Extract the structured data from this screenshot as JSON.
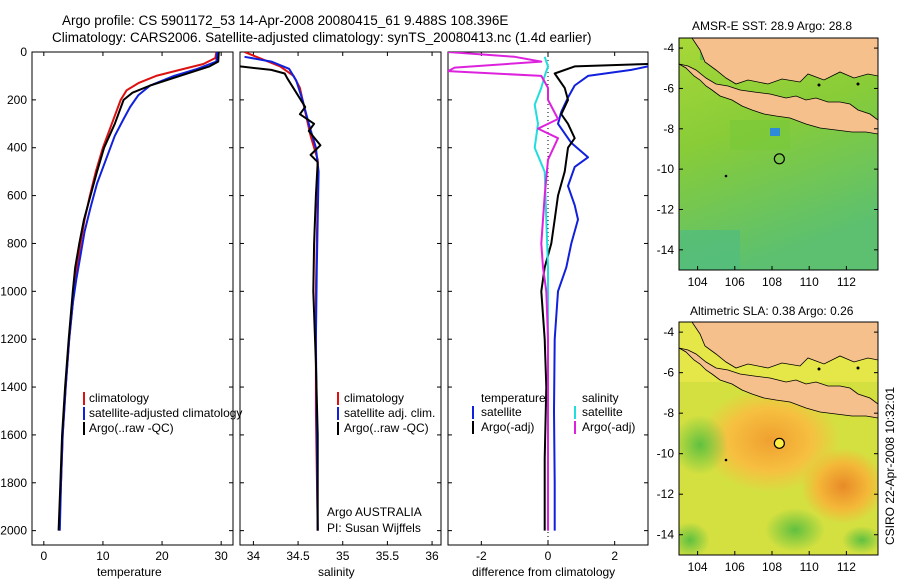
{
  "header": {
    "title_line1": "Argo profile: CS 5901172_53 14-Apr-2008 20080415_61 9.488S 108.396E",
    "title_line2": "Climatology: CARS2006. Satellite-adjusted climatology: synTS_20080413.nc (1.4d earlier)"
  },
  "side_stamp": "CSIRO 22-Apr-2008 10:32:01",
  "colors": {
    "climatology": "#dd1111",
    "satellite": "#1020dd",
    "argo": "#000000",
    "sal_satellite": "#22dddd",
    "sal_argo": "#dd22dd",
    "land": "#f5c08c"
  },
  "chart_data": [
    {
      "id": "temperature",
      "type": "line",
      "xlabel": "temperature",
      "xlim": [
        -2,
        32
      ],
      "xticks": [
        0,
        10,
        20,
        30
      ],
      "ylim": [
        2060,
        0
      ],
      "yticks": [
        0,
        200,
        400,
        600,
        800,
        1000,
        1200,
        1400,
        1600,
        1800,
        2000
      ],
      "legend": [
        "climatology",
        "satellite-adjusted climatology",
        "Argo(..raw -QC)"
      ],
      "series": [
        {
          "name": "climatology",
          "color": "#dd1111",
          "points": [
            [
              29.2,
              0
            ],
            [
              29,
              25
            ],
            [
              27,
              50
            ],
            [
              23,
              75
            ],
            [
              19,
              100
            ],
            [
              16,
              130
            ],
            [
              14,
              160
            ],
            [
              13,
              200
            ],
            [
              11.5,
              300
            ],
            [
              10,
              400
            ],
            [
              8.8,
              500
            ],
            [
              7.8,
              600
            ],
            [
              6.9,
              700
            ],
            [
              6.2,
              800
            ],
            [
              5.6,
              900
            ],
            [
              5.1,
              1000
            ],
            [
              4.3,
              1200
            ],
            [
              3.7,
              1400
            ],
            [
              3.2,
              1600
            ],
            [
              2.9,
              1800
            ],
            [
              2.6,
              2000
            ]
          ]
        },
        {
          "name": "satellite-adjusted climatology",
          "color": "#1020dd",
          "points": [
            [
              29.3,
              0
            ],
            [
              29.2,
              40
            ],
            [
              26,
              70
            ],
            [
              22,
              100
            ],
            [
              18,
              140
            ],
            [
              16,
              180
            ],
            [
              14.6,
              230
            ],
            [
              13.5,
              280
            ],
            [
              12,
              350
            ],
            [
              10.5,
              450
            ],
            [
              9,
              550
            ],
            [
              7.9,
              650
            ],
            [
              6.9,
              750
            ],
            [
              6.2,
              850
            ],
            [
              5.5,
              950
            ],
            [
              4.9,
              1050
            ],
            [
              4.3,
              1200
            ],
            [
              3.7,
              1400
            ],
            [
              3.2,
              1600
            ],
            [
              2.9,
              1800
            ],
            [
              2.7,
              2000
            ]
          ]
        },
        {
          "name": "Argo(..raw -QC)",
          "color": "#000000",
          "points": [
            [
              29.6,
              0
            ],
            [
              29.5,
              40
            ],
            [
              28,
              60
            ],
            [
              23,
              100
            ],
            [
              18,
              140
            ],
            [
              15,
              170
            ],
            [
              13.5,
              200
            ],
            [
              12,
              300
            ],
            [
              10.2,
              400
            ],
            [
              9,
              500
            ],
            [
              7.9,
              600
            ],
            [
              6.8,
              700
            ],
            [
              6,
              800
            ],
            [
              5.3,
              900
            ],
            [
              4.9,
              1000
            ],
            [
              4.2,
              1200
            ],
            [
              3.6,
              1400
            ],
            [
              3.1,
              1600
            ],
            [
              2.8,
              1800
            ],
            [
              2.5,
              2000
            ]
          ]
        }
      ]
    },
    {
      "id": "salinity",
      "type": "line",
      "xlabel": "salinity",
      "xlim": [
        33.85,
        36.1
      ],
      "xticks": [
        34,
        34.5,
        35,
        35.5,
        36
      ],
      "ylim": [
        2060,
        0
      ],
      "legend": [
        "climatology",
        "satellite adj. clim.",
        "Argo(..raw -QC)"
      ],
      "annotations": [
        "Argo AUSTRALIA",
        "PI: Susan Wijffels"
      ],
      "series": [
        {
          "name": "climatology",
          "color": "#dd1111",
          "points": [
            [
              33.9,
              0
            ],
            [
              34.1,
              30
            ],
            [
              34.3,
              60
            ],
            [
              34.45,
              100
            ],
            [
              34.52,
              150
            ],
            [
              34.58,
              250
            ],
            [
              34.64,
              350
            ],
            [
              34.72,
              450
            ],
            [
              34.72,
              600
            ],
            [
              34.71,
              800
            ],
            [
              34.7,
              1000
            ],
            [
              34.7,
              1500
            ],
            [
              34.72,
              2000
            ]
          ]
        },
        {
          "name": "satellite adj. clim.",
          "color": "#1020dd",
          "points": [
            [
              33.9,
              20
            ],
            [
              34.2,
              40
            ],
            [
              34.4,
              70
            ],
            [
              34.48,
              120
            ],
            [
              34.55,
              200
            ],
            [
              34.62,
              300
            ],
            [
              34.7,
              400
            ],
            [
              34.73,
              500
            ],
            [
              34.72,
              700
            ],
            [
              34.71,
              900
            ],
            [
              34.7,
              1200
            ],
            [
              34.71,
              1600
            ],
            [
              34.72,
              2000
            ]
          ]
        },
        {
          "name": "Argo(..raw -QC)",
          "color": "#000000",
          "points": [
            [
              33.85,
              60
            ],
            [
              34.2,
              75
            ],
            [
              34.35,
              90
            ],
            [
              34.38,
              110
            ],
            [
              34.48,
              170
            ],
            [
              34.58,
              230
            ],
            [
              34.52,
              260
            ],
            [
              34.68,
              300
            ],
            [
              34.62,
              330
            ],
            [
              34.75,
              390
            ],
            [
              34.64,
              430
            ],
            [
              34.72,
              460
            ],
            [
              34.7,
              600
            ],
            [
              34.68,
              800
            ],
            [
              34.67,
              1000
            ],
            [
              34.7,
              1300
            ],
            [
              34.72,
              1600
            ],
            [
              34.72,
              2000
            ]
          ]
        }
      ]
    },
    {
      "id": "difference",
      "type": "line",
      "xlabel": "difference from climatology",
      "xlim": [
        -3,
        3
      ],
      "xticks": [
        -2,
        0,
        2
      ],
      "ylim": [
        2060,
        0
      ],
      "legend_groups": [
        {
          "title": "temperature",
          "entries": [
            "satellite",
            "Argo(-adj)"
          ]
        },
        {
          "title": "salinity",
          "entries": [
            "satellite",
            "Argo(-adj)"
          ]
        }
      ],
      "series": [
        {
          "name": "temperature satellite",
          "color": "#1020dd",
          "points": [
            [
              3,
              60
            ],
            [
              2.5,
              75
            ],
            [
              1.2,
              100
            ],
            [
              0.8,
              140
            ],
            [
              0.6,
              190
            ],
            [
              0.4,
              250
            ],
            [
              0.3,
              300
            ],
            [
              0.7,
              380
            ],
            [
              1.2,
              440
            ],
            [
              0.8,
              480
            ],
            [
              0.6,
              560
            ],
            [
              0.8,
              640
            ],
            [
              0.9,
              700
            ],
            [
              0.7,
              800
            ],
            [
              0.55,
              900
            ],
            [
              0.3,
              1000
            ],
            [
              0.2,
              1200
            ],
            [
              0.18,
              1500
            ],
            [
              0.2,
              1800
            ],
            [
              0.2,
              2000
            ]
          ]
        },
        {
          "name": "temperature Argo(-adj)",
          "color": "#000000",
          "points": [
            [
              3,
              50
            ],
            [
              0.8,
              60
            ],
            [
              0.2,
              90
            ],
            [
              0.5,
              150
            ],
            [
              0.6,
              200
            ],
            [
              0.4,
              260
            ],
            [
              0.6,
              300
            ],
            [
              0.8,
              360
            ],
            [
              0.6,
              400
            ],
            [
              0.5,
              500
            ],
            [
              0.3,
              600
            ],
            [
              0.2,
              700
            ],
            [
              0.1,
              800
            ],
            [
              -0.1,
              900
            ],
            [
              -0.2,
              1000
            ],
            [
              -0.1,
              1200
            ],
            [
              -0.05,
              1400
            ],
            [
              -0.1,
              1700
            ],
            [
              -0.1,
              2000
            ]
          ]
        },
        {
          "name": "salinity satellite",
          "color": "#22dddd",
          "points": [
            [
              -0.1,
              20
            ],
            [
              0,
              60
            ],
            [
              -0.1,
              100
            ],
            [
              -0.2,
              150
            ],
            [
              -0.4,
              220
            ],
            [
              -0.3,
              300
            ],
            [
              -0.4,
              400
            ],
            [
              -0.1,
              500
            ],
            [
              -0.05,
              700
            ],
            [
              0,
              900
            ],
            [
              0,
              1200
            ],
            [
              0,
              1600
            ],
            [
              0,
              2000
            ]
          ]
        },
        {
          "name": "salinity Argo(-adj)",
          "color": "#dd22dd",
          "points": [
            [
              -3,
              0
            ],
            [
              -1,
              20
            ],
            [
              -0.2,
              40
            ],
            [
              -2.8,
              65
            ],
            [
              -3,
              80
            ],
            [
              -0.2,
              100
            ],
            [
              0,
              150
            ],
            [
              0,
              200
            ],
            [
              0.3,
              280
            ],
            [
              -0.3,
              320
            ],
            [
              0.3,
              360
            ],
            [
              0,
              450
            ],
            [
              -0.1,
              600
            ],
            [
              -0.2,
              800
            ],
            [
              -0.15,
              900
            ],
            [
              -0.05,
              1000
            ],
            [
              0,
              1200
            ],
            [
              0,
              1500
            ],
            [
              0,
              2000
            ]
          ]
        }
      ]
    },
    {
      "id": "sst_map",
      "type": "heatmap",
      "title": "AMSR-E SST: 28.9 Argo: 28.8",
      "xlim": [
        103,
        113.7
      ],
      "ylim": [
        -15,
        -3.5
      ],
      "xticks": [
        104,
        106,
        108,
        110,
        112
      ],
      "yticks": [
        -4,
        -6,
        -8,
        -10,
        -12,
        -14
      ],
      "marker": [
        108.396,
        -9.488
      ]
    },
    {
      "id": "sla_map",
      "type": "heatmap",
      "title": "Altimetric SLA: 0.38 Argo: 0.26",
      "xlim": [
        103,
        113.7
      ],
      "ylim": [
        -15,
        -3.5
      ],
      "xticks": [
        104,
        106,
        108,
        110,
        112
      ],
      "yticks": [
        -4,
        -6,
        -8,
        -10,
        -12,
        -14
      ],
      "marker": [
        108.396,
        -9.488
      ]
    }
  ]
}
